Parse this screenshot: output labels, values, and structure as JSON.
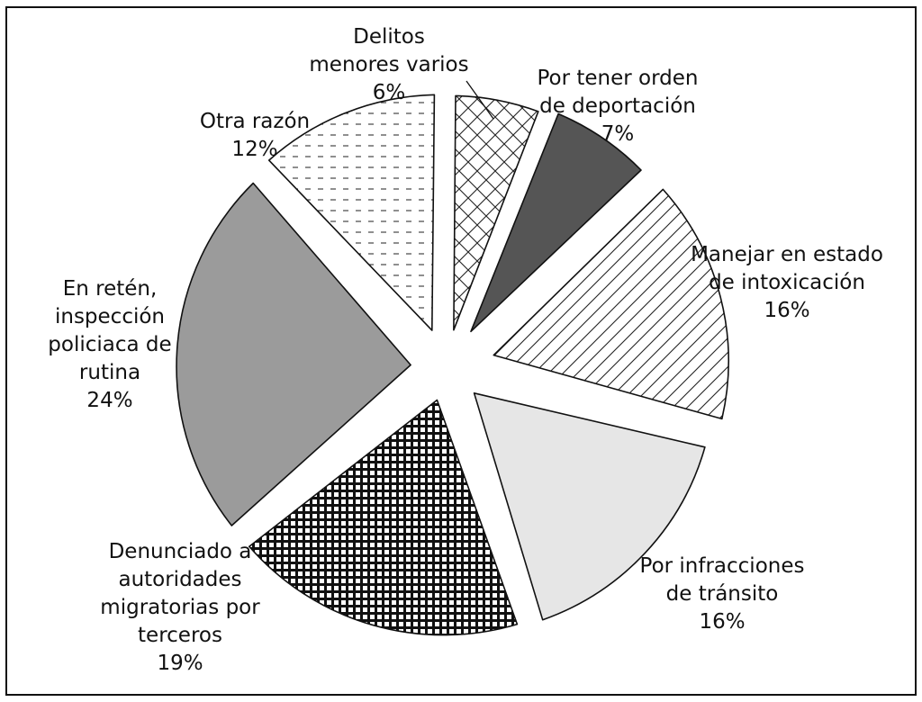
{
  "chart_data": {
    "type": "pie",
    "exploded": true,
    "title": "",
    "slices": [
      {
        "label_lines": [
          "Delitos",
          "menores varios"
        ],
        "value_text": "6%",
        "value": 6,
        "fill": "crosshatch"
      },
      {
        "label_lines": [
          "Por tener orden",
          "de deportación"
        ],
        "value_text": "7%",
        "value": 7,
        "fill": "#555555"
      },
      {
        "label_lines": [
          "Manejar en estado",
          "de intoxicación"
        ],
        "value_text": "16%",
        "value": 16,
        "fill": "diagonal-lines"
      },
      {
        "label_lines": [
          "Por infracciones",
          "de tránsito"
        ],
        "value_text": "16%",
        "value": 16,
        "fill": "#e6e6e6"
      },
      {
        "label_lines": [
          "Denunciado a",
          "autoridades",
          "migratorias por",
          "terceros"
        ],
        "value_text": "19%",
        "value": 19,
        "fill": "dense-grid"
      },
      {
        "label_lines": [
          "En retén,",
          "inspección",
          "policiaca de",
          "rutina"
        ],
        "value_text": "24%",
        "value": 24,
        "fill": "#9b9b9b"
      },
      {
        "label_lines": [
          "Otra razón"
        ],
        "value_text": "12%",
        "value": 12,
        "fill": "dashes"
      }
    ]
  }
}
